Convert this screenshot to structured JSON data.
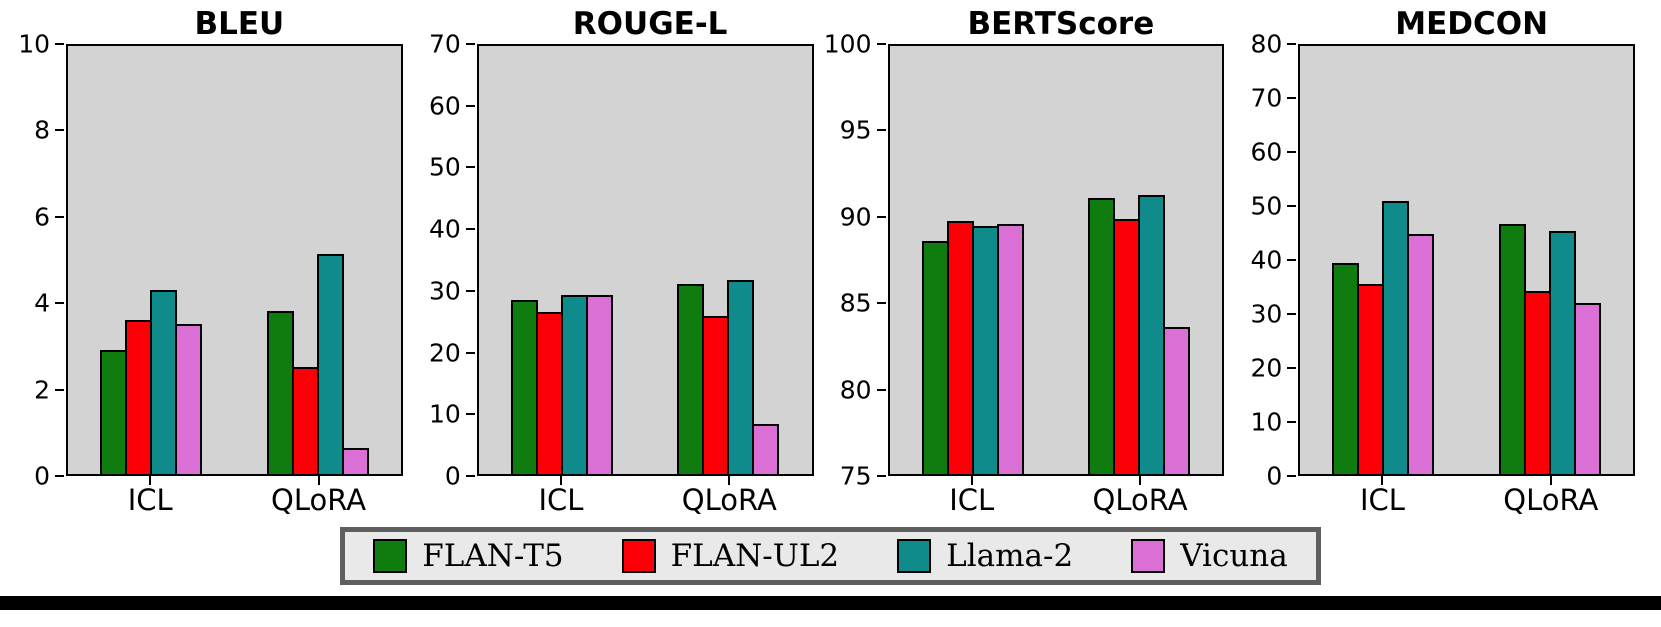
{
  "figure": {
    "colors": {
      "plot_background": "#d3d3d3",
      "legend_background": "#e9e9e9",
      "legend_border": "#5f5f5f",
      "bar_edge": "#000000"
    },
    "legend": {
      "position": "bottom-center",
      "items": [
        {
          "label": "FLAN-T5",
          "color": "#107c10"
        },
        {
          "label": "FLAN-UL2",
          "color": "#fb0007"
        },
        {
          "label": "Llama-2",
          "color": "#0f8b8b"
        },
        {
          "label": "Vicuna",
          "color": "#da70d6"
        }
      ]
    }
  },
  "chart_data": [
    {
      "type": "bar",
      "title": "BLEU",
      "categories": [
        "ICL",
        "QLoRA"
      ],
      "series": [
        {
          "name": "FLAN-T5",
          "color": "#107c10",
          "values": [
            2.9,
            3.8
          ]
        },
        {
          "name": "FLAN-UL2",
          "color": "#fb0007",
          "values": [
            3.6,
            2.5
          ]
        },
        {
          "name": "Llama-2",
          "color": "#0f8b8b",
          "values": [
            4.3,
            5.15
          ]
        },
        {
          "name": "Vicuna",
          "color": "#da70d6",
          "values": [
            3.5,
            0.6
          ]
        }
      ],
      "xlabel": "",
      "ylabel": "",
      "ylim": [
        0,
        10
      ],
      "yticks": [
        0,
        2,
        4,
        6,
        8,
        10
      ],
      "grid": false
    },
    {
      "type": "bar",
      "title": "ROUGE-L",
      "categories": [
        "ICL",
        "QLoRA"
      ],
      "series": [
        {
          "name": "FLAN-T5",
          "color": "#107c10",
          "values": [
            28.5,
            31.1
          ]
        },
        {
          "name": "FLAN-UL2",
          "color": "#fb0007",
          "values": [
            26.5,
            25.8
          ]
        },
        {
          "name": "Llama-2",
          "color": "#0f8b8b",
          "values": [
            29.3,
            31.7
          ]
        },
        {
          "name": "Vicuna",
          "color": "#da70d6",
          "values": [
            29.3,
            8.2
          ]
        }
      ],
      "xlabel": "",
      "ylabel": "",
      "ylim": [
        0,
        70
      ],
      "yticks": [
        0,
        10,
        20,
        30,
        40,
        50,
        60,
        70
      ],
      "grid": false
    },
    {
      "type": "bar",
      "title": "BERTScore",
      "categories": [
        "ICL",
        "QLoRA"
      ],
      "series": [
        {
          "name": "FLAN-T5",
          "color": "#107c10",
          "values": [
            88.6,
            91.1
          ]
        },
        {
          "name": "FLAN-UL2",
          "color": "#fb0007",
          "values": [
            89.8,
            89.9
          ]
        },
        {
          "name": "Llama-2",
          "color": "#0f8b8b",
          "values": [
            89.5,
            91.3
          ]
        },
        {
          "name": "Vicuna",
          "color": "#da70d6",
          "values": [
            89.6,
            83.6
          ]
        }
      ],
      "xlabel": "",
      "ylabel": "",
      "ylim": [
        75,
        100
      ],
      "yticks": [
        75,
        80,
        85,
        90,
        95,
        100
      ],
      "grid": false
    },
    {
      "type": "bar",
      "title": "MEDCON",
      "categories": [
        "ICL",
        "QLoRA"
      ],
      "series": [
        {
          "name": "FLAN-T5",
          "color": "#107c10",
          "values": [
            39.5,
            46.8
          ]
        },
        {
          "name": "FLAN-UL2",
          "color": "#fb0007",
          "values": [
            35.5,
            34.3
          ]
        },
        {
          "name": "Llama-2",
          "color": "#0f8b8b",
          "values": [
            51.0,
            45.5
          ]
        },
        {
          "name": "Vicuna",
          "color": "#da70d6",
          "values": [
            44.8,
            32.0
          ]
        }
      ],
      "xlabel": "",
      "ylabel": "",
      "ylim": [
        0,
        80
      ],
      "yticks": [
        0,
        10,
        20,
        30,
        40,
        50,
        60,
        70,
        80
      ],
      "grid": false
    }
  ]
}
